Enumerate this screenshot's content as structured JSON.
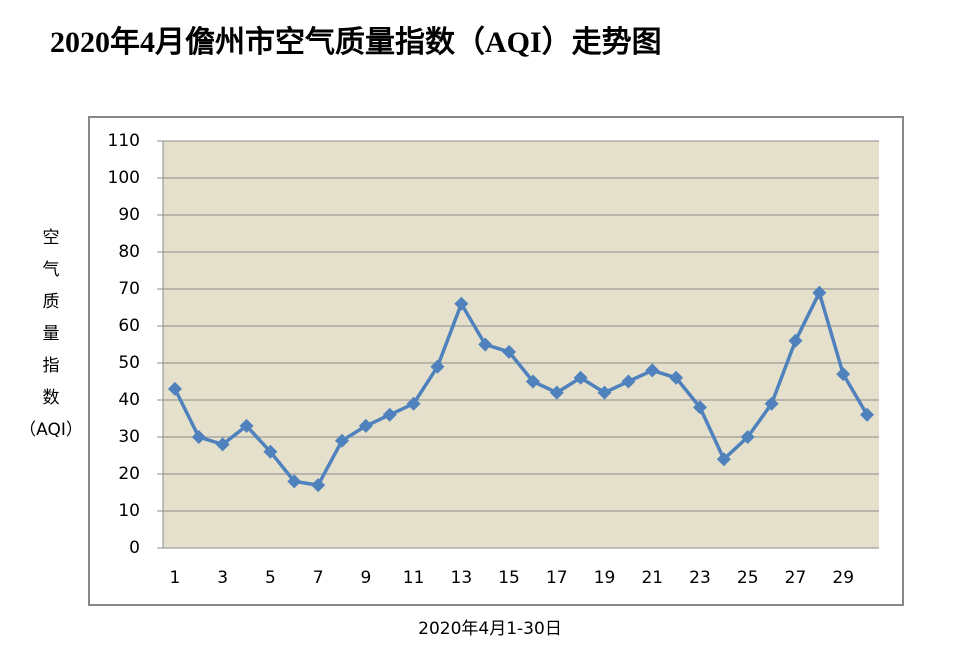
{
  "chart_data": {
    "type": "line",
    "title": "2020年4月儋州市空气质量指数（AQI）走势图",
    "ylabel": [
      "空",
      "气",
      "质",
      "量",
      "指",
      "数",
      "（AQI）"
    ],
    "xlabel": "2020年4月1-30日",
    "categories": [
      "1",
      null,
      "3",
      null,
      "5",
      null,
      "7",
      null,
      "9",
      null,
      "11",
      null,
      "13",
      null,
      "15",
      null,
      "17",
      null,
      "19",
      null,
      "21",
      null,
      "23",
      null,
      "25",
      null,
      "27",
      null,
      "29",
      null
    ],
    "values": [
      43,
      30,
      28,
      33,
      26,
      18,
      17,
      29,
      33,
      36,
      39,
      49,
      66,
      55,
      53,
      45,
      42,
      46,
      42,
      45,
      48,
      46,
      38,
      24,
      30,
      39,
      56,
      69,
      47,
      36
    ],
    "color": "#4f81bd",
    "ylim": [
      0,
      110
    ],
    "yticks": [
      0,
      10,
      20,
      30,
      40,
      50,
      60,
      70,
      80,
      90,
      100,
      110
    ],
    "grid": true
  }
}
